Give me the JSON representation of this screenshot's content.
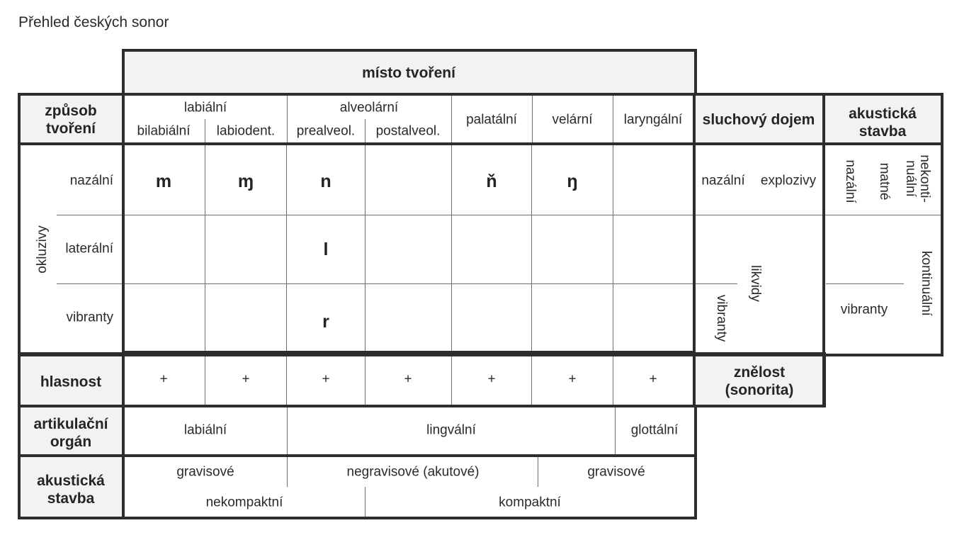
{
  "title": "Přehled českých sonor",
  "header": {
    "misto_tvoreni": "místo tvoření",
    "zpusob_tvoreni": "způsob\ntvoření",
    "sluchovy_dojem": "sluchový dojem",
    "akusticka_stavba": "akustická\nstavba"
  },
  "place_groups": {
    "labialni": "labiální",
    "alveolarni": "alveolární"
  },
  "places": {
    "bilabialni": "bilabiální",
    "labiodent": "labiodent.",
    "prealveol": "prealveol.",
    "postalveol": "postalveol.",
    "palatalni": "palatální",
    "velarni": "velární",
    "laryngalni": "laryngální"
  },
  "manner": {
    "okluzivy": "okluzivy",
    "nazalni": "nazální",
    "lateralni": "laterální",
    "vibranty": "vibranty"
  },
  "phonemes": {
    "m": "m",
    "mu": "ɱ",
    "n": "n",
    "nj": "ň",
    "ng": "ŋ",
    "l": "l",
    "r": "r"
  },
  "sluchovy": {
    "nazalni": "nazální",
    "explozivy": "explozivy",
    "likvidy": "likvidy",
    "vibranty": "vibranty"
  },
  "akusticka_right": {
    "nazalni": "nazální",
    "matne": "matné",
    "nekontinualni": "nekonti-\nnuální",
    "kontinualni": "kontinuální",
    "vibranty": "vibranty"
  },
  "hlasnost": {
    "label": "hlasnost",
    "values": [
      "+",
      "+",
      "+",
      "+",
      "+",
      "+",
      "+"
    ]
  },
  "znelost": "znělost\n(sonorita)",
  "artikulacni": {
    "label": "artikulační\norgán",
    "labialni": "labiální",
    "lingvalni": "lingvální",
    "glottalni": "glottální"
  },
  "akusticka_bottom": {
    "label": "akustická\nstavba",
    "gravisove_1": "gravisové",
    "negravisove": "negravisové (akutové)",
    "gravisove_2": "gravisové",
    "nekompaktni": "nekompaktní",
    "kompaktni": "kompaktní"
  },
  "colors": {
    "border": "#2b2e2e",
    "header_bg": "#f1f2f1",
    "thin_line": "#6e6e6e"
  }
}
